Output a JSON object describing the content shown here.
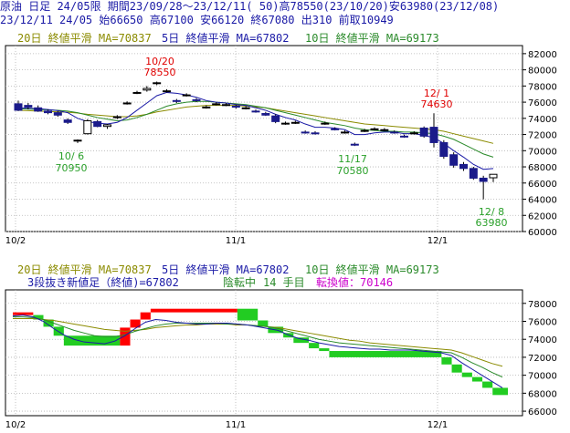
{
  "header": {
    "line1": "原油 日足 24/05限 期間23/09/28～23/12/11( 50)高78550(23/10/20)安63980(23/12/08)",
    "line2": "23/12/11 24/05 始66650 高67100 安66120 終67080 出310 前取10949"
  },
  "legend_top": {
    "ma20": "20日 終値平滑 MA=70837",
    "ma5": "5日 終値平滑 MA=67802",
    "ma10": "10日 終値平滑 MA=69173"
  },
  "legend_bottom": {
    "ma20": "20日 終値平滑 MA=70837",
    "ma5": "5日 終値平滑 MA=67802",
    "ma10": "10日 終値平滑 MA=69173",
    "three_line": "3段抜き新値足（終値)=67802",
    "status": "陰転中",
    "count": "14 手目",
    "reversal": "転換値：70146"
  },
  "colors": {
    "header_text": "#1a1aa6",
    "ma20": "#8b8b00",
    "ma5": "#1a1aa6",
    "ma10": "#2a8a2a",
    "annotation_red": "#e00000",
    "annotation_green": "#2aa02a",
    "status_magenta": "#cc00cc",
    "candle_up": "#ffffff",
    "candle_down": "#1a1a8a",
    "kagi_up": "#ff0000",
    "kagi_down": "#22cc22"
  },
  "annotations": {
    "high_date": "10/20",
    "high_val": "78550",
    "low1_date": "10/ 6",
    "low1_val": "70950",
    "low2_date": "11/17",
    "low2_val": "70580",
    "high2_date": "12/ 1",
    "high2_val": "74630",
    "low3_date": "12/ 8",
    "low3_val": "63980"
  },
  "chart_data": [
    {
      "type": "candlestick",
      "title": "原油 日足 24/05限",
      "x_labels": [
        "10/2",
        "11/1",
        "12/1"
      ],
      "y_ticks": [
        60000,
        62000,
        64000,
        66000,
        68000,
        70000,
        72000,
        74000,
        76000,
        78000,
        80000,
        82000
      ],
      "ylim": [
        60000,
        83000
      ],
      "candles": [
        {
          "o": 75800,
          "h": 76200,
          "l": 74900,
          "c": 75000
        },
        {
          "o": 75600,
          "h": 75900,
          "l": 75100,
          "c": 75400
        },
        {
          "o": 75300,
          "h": 75600,
          "l": 74800,
          "c": 74900
        },
        {
          "o": 74900,
          "h": 75100,
          "l": 74500,
          "c": 74700
        },
        {
          "o": 74700,
          "h": 74900,
          "l": 74200,
          "c": 74400
        },
        {
          "o": 73800,
          "h": 74000,
          "l": 73300,
          "c": 73500
        },
        {
          "o": 71200,
          "h": 71400,
          "l": 70950,
          "c": 71300
        },
        {
          "o": 72100,
          "h": 73900,
          "l": 72000,
          "c": 73700
        },
        {
          "o": 73600,
          "h": 73800,
          "l": 72900,
          "c": 73000
        },
        {
          "o": 73000,
          "h": 73300,
          "l": 72700,
          "c": 73200
        },
        {
          "o": 74200,
          "h": 74400,
          "l": 73900,
          "c": 74200
        },
        {
          "o": 75900,
          "h": 76100,
          "l": 75700,
          "c": 75900
        },
        {
          "o": 77200,
          "h": 77400,
          "l": 77000,
          "c": 77200
        },
        {
          "o": 77500,
          "h": 78000,
          "l": 77300,
          "c": 77700
        },
        {
          "o": 78300,
          "h": 78550,
          "l": 78100,
          "c": 78400
        },
        {
          "o": 77400,
          "h": 77600,
          "l": 77200,
          "c": 77400
        },
        {
          "o": 76200,
          "h": 76400,
          "l": 75900,
          "c": 76100
        },
        {
          "o": 76900,
          "h": 77100,
          "l": 76700,
          "c": 76900
        },
        {
          "o": 76300,
          "h": 76500,
          "l": 76000,
          "c": 76200
        },
        {
          "o": 75400,
          "h": 75600,
          "l": 75200,
          "c": 75400
        },
        {
          "o": 75800,
          "h": 76000,
          "l": 75600,
          "c": 75800
        },
        {
          "o": 75700,
          "h": 75900,
          "l": 75500,
          "c": 75700
        },
        {
          "o": 75500,
          "h": 75700,
          "l": 75200,
          "c": 75400
        },
        {
          "o": 75300,
          "h": 75500,
          "l": 75100,
          "c": 75300
        },
        {
          "o": 74900,
          "h": 75100,
          "l": 74700,
          "c": 74800
        },
        {
          "o": 74600,
          "h": 74800,
          "l": 74300,
          "c": 74400
        },
        {
          "o": 74300,
          "h": 74500,
          "l": 73400,
          "c": 73600
        },
        {
          "o": 73400,
          "h": 73600,
          "l": 73200,
          "c": 73400
        },
        {
          "o": 73500,
          "h": 73700,
          "l": 73300,
          "c": 73500
        },
        {
          "o": 72300,
          "h": 72500,
          "l": 72100,
          "c": 72200
        },
        {
          "o": 72200,
          "h": 72400,
          "l": 72000,
          "c": 72100
        },
        {
          "o": 73400,
          "h": 73600,
          "l": 73200,
          "c": 73400
        },
        {
          "o": 72700,
          "h": 72900,
          "l": 72500,
          "c": 72600
        },
        {
          "o": 72300,
          "h": 72500,
          "l": 72100,
          "c": 72300
        },
        {
          "o": 70800,
          "h": 71000,
          "l": 70580,
          "c": 70700
        },
        {
          "o": 72500,
          "h": 72700,
          "l": 72300,
          "c": 72500
        },
        {
          "o": 72700,
          "h": 72900,
          "l": 72500,
          "c": 72700
        },
        {
          "o": 72600,
          "h": 72800,
          "l": 72400,
          "c": 72600
        },
        {
          "o": 72300,
          "h": 72500,
          "l": 72100,
          "c": 72200
        },
        {
          "o": 71800,
          "h": 72000,
          "l": 71600,
          "c": 71700
        },
        {
          "o": 72200,
          "h": 72400,
          "l": 72000,
          "c": 72200
        },
        {
          "o": 72800,
          "h": 73000,
          "l": 71600,
          "c": 71800
        },
        {
          "o": 72900,
          "h": 74630,
          "l": 70400,
          "c": 71000
        },
        {
          "o": 71000,
          "h": 71300,
          "l": 69000,
          "c": 69300
        },
        {
          "o": 69500,
          "h": 69800,
          "l": 67900,
          "c": 68200
        },
        {
          "o": 68300,
          "h": 68600,
          "l": 67500,
          "c": 67800
        },
        {
          "o": 67800,
          "h": 68000,
          "l": 66400,
          "c": 66600
        },
        {
          "o": 66600,
          "h": 66900,
          "l": 63980,
          "c": 66200
        },
        {
          "o": 66650,
          "h": 67100,
          "l": 66120,
          "c": 67080
        }
      ],
      "series": [
        {
          "name": "5日 終値平滑",
          "values": [
            75300,
            75250,
            75200,
            75100,
            74950,
            74700,
            74000,
            73600,
            73400,
            73300,
            73500,
            74100,
            75000,
            75900,
            76800,
            77200,
            77100,
            76900,
            76600,
            76200,
            76000,
            75900,
            75700,
            75600,
            75300,
            75000,
            74500,
            74100,
            73800,
            73300,
            72900,
            72900,
            72800,
            72600,
            72000,
            72000,
            72200,
            72300,
            72300,
            72100,
            72100,
            71900,
            71600,
            70900,
            70000,
            69200,
            68300,
            67700,
            67800
          ]
        },
        {
          "name": "10日 終値平滑",
          "values": [
            75200,
            75150,
            75100,
            75050,
            75000,
            74900,
            74700,
            74400,
            74100,
            73900,
            73700,
            73800,
            74100,
            74500,
            75000,
            75500,
            75800,
            76000,
            76100,
            76100,
            76000,
            75900,
            75800,
            75700,
            75500,
            75300,
            75000,
            74700,
            74400,
            74100,
            73800,
            73500,
            73300,
            73100,
            72800,
            72600,
            72500,
            72400,
            72400,
            72300,
            72300,
            72200,
            72100,
            71800,
            71400,
            70800,
            70200,
            69600,
            69200
          ]
        },
        {
          "name": "20日 終値平滑",
          "values": [
            75000,
            74950,
            74900,
            74850,
            74800,
            74750,
            74650,
            74500,
            74400,
            74300,
            74200,
            74200,
            74300,
            74500,
            74800,
            75000,
            75200,
            75400,
            75500,
            75600,
            75600,
            75600,
            75600,
            75500,
            75400,
            75300,
            75100,
            74900,
            74700,
            74500,
            74300,
            74100,
            73900,
            73700,
            73500,
            73300,
            73200,
            73100,
            73000,
            72900,
            72800,
            72700,
            72600,
            72400,
            72100,
            71800,
            71500,
            71200,
            70900
          ]
        }
      ]
    },
    {
      "type": "kagi",
      "title": "3段抜き新値足（終値)=67802",
      "x_labels": [
        "10/2",
        "11/1",
        "12/1"
      ],
      "y_ticks": [
        66000,
        68000,
        70000,
        72000,
        74000,
        76000,
        78000
      ],
      "ylim": [
        65500,
        79500
      ],
      "blocks": [
        {
          "i0": 0,
          "i1": 4,
          "y0": 77000,
          "y1": 76700,
          "dir": "up"
        },
        {
          "i0": 4,
          "i1": 6,
          "y0": 76700,
          "y1": 76200,
          "dir": "down"
        },
        {
          "i0": 6,
          "i1": 8,
          "y0": 76200,
          "y1": 75400,
          "dir": "down"
        },
        {
          "i0": 8,
          "i1": 10,
          "y0": 75400,
          "y1": 74400,
          "dir": "down"
        },
        {
          "i0": 10,
          "i1": 21,
          "y0": 74400,
          "y1": 73300,
          "dir": "down"
        },
        {
          "i0": 21,
          "i1": 23,
          "y0": 73300,
          "y1": 75300,
          "dir": "up"
        },
        {
          "i0": 23,
          "i1": 25,
          "y0": 75300,
          "y1": 76200,
          "dir": "up"
        },
        {
          "i0": 25,
          "i1": 27,
          "y0": 76200,
          "y1": 77000,
          "dir": "up"
        },
        {
          "i0": 27,
          "i1": 44,
          "y0": 77000,
          "y1": 77400,
          "dir": "up"
        },
        {
          "i0": 44,
          "i1": 48,
          "y0": 77400,
          "y1": 76100,
          "dir": "down"
        },
        {
          "i0": 48,
          "i1": 50,
          "y0": 76100,
          "y1": 75400,
          "dir": "down"
        },
        {
          "i0": 50,
          "i1": 53,
          "y0": 75400,
          "y1": 74700,
          "dir": "down"
        },
        {
          "i0": 53,
          "i1": 55,
          "y0": 74700,
          "y1": 74200,
          "dir": "down"
        },
        {
          "i0": 55,
          "i1": 58,
          "y0": 74200,
          "y1": 73600,
          "dir": "down"
        },
        {
          "i0": 58,
          "i1": 60,
          "y0": 73600,
          "y1": 73000,
          "dir": "down"
        },
        {
          "i0": 60,
          "i1": 62,
          "y0": 73000,
          "y1": 72700,
          "dir": "down"
        },
        {
          "i0": 62,
          "i1": 84,
          "y0": 72700,
          "y1": 72000,
          "dir": "down"
        },
        {
          "i0": 84,
          "i1": 86,
          "y0": 72000,
          "y1": 71200,
          "dir": "down"
        },
        {
          "i0": 86,
          "i1": 88,
          "y0": 71200,
          "y1": 70300,
          "dir": "down"
        },
        {
          "i0": 88,
          "i1": 90,
          "y0": 70300,
          "y1": 69800,
          "dir": "down"
        },
        {
          "i0": 90,
          "i1": 92,
          "y0": 69800,
          "y1": 69300,
          "dir": "down"
        },
        {
          "i0": 92,
          "i1": 94,
          "y0": 69300,
          "y1": 68600,
          "dir": "down"
        },
        {
          "i0": 94,
          "i1": 97,
          "y0": 68600,
          "y1": 67800,
          "dir": "down"
        }
      ],
      "series": [
        {
          "name": "5日 終値平滑",
          "values": [
            76600,
            76700,
            76500,
            76000,
            75200,
            74500,
            74000,
            73700,
            73600,
            73500,
            73800,
            74400,
            75200,
            75900,
            76200,
            76100,
            75900,
            75800,
            75700,
            75700,
            75800,
            75800,
            75700,
            75600,
            75400,
            75200,
            75000,
            74500,
            74100,
            73900,
            73600,
            73400,
            73200,
            73100,
            73000,
            72900,
            72900,
            72800,
            72800,
            72800,
            72700,
            72600,
            72500,
            72200,
            71400,
            70700,
            70000,
            69300,
            68600
          ]
        },
        {
          "name": "10日 終値平滑",
          "values": [
            76500,
            76500,
            76400,
            76200,
            75800,
            75400,
            75000,
            74700,
            74400,
            74300,
            74300,
            74500,
            74900,
            75200,
            75500,
            75700,
            75800,
            75800,
            75800,
            75800,
            75800,
            75700,
            75700,
            75600,
            75500,
            75400,
            75200,
            74900,
            74600,
            74300,
            74000,
            73800,
            73600,
            73500,
            73400,
            73300,
            73200,
            73100,
            73000,
            72900,
            72800,
            72700,
            72600,
            72500,
            72000,
            71400,
            70900,
            70300,
            69800
          ]
        },
        {
          "name": "20日 終値平滑",
          "values": [
            76300,
            76300,
            76300,
            76200,
            76100,
            75900,
            75700,
            75500,
            75300,
            75100,
            75000,
            74900,
            75000,
            75100,
            75300,
            75400,
            75500,
            75600,
            75600,
            75700,
            75700,
            75700,
            75600,
            75600,
            75500,
            75400,
            75300,
            75100,
            74900,
            74700,
            74500,
            74300,
            74100,
            73900,
            73800,
            73600,
            73500,
            73400,
            73300,
            73200,
            73100,
            73000,
            72900,
            72800,
            72500,
            72100,
            71700,
            71300,
            71000
          ]
        }
      ]
    }
  ]
}
